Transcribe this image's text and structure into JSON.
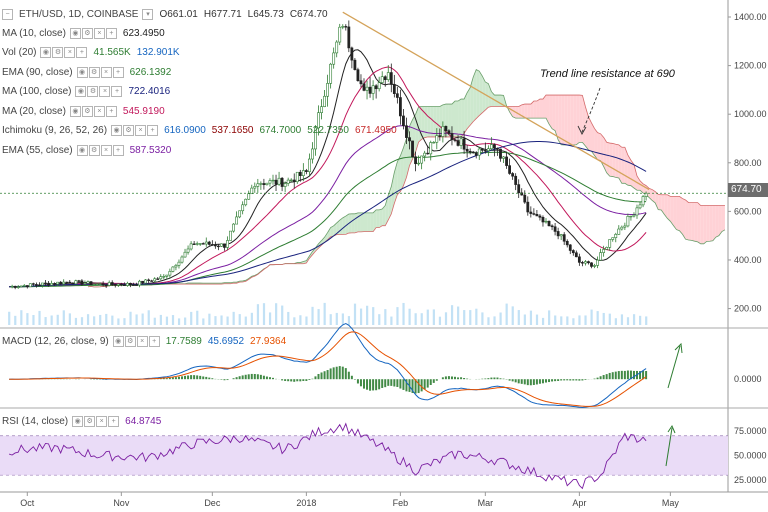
{
  "chart_header": {
    "symbol": "ETH/USD, 1D, COINBASE",
    "ohlc": [
      "O661.01",
      "H677.71",
      "L645.73",
      "C674.70"
    ]
  },
  "indicators": [
    {
      "name": "MA (10, close)",
      "values": [
        "623.4950"
      ],
      "colors": [
        "#222222"
      ]
    },
    {
      "name": "Vol (20)",
      "values": [
        "41.565K",
        "132.901K"
      ],
      "colors": [
        "#2e7d32",
        "#1565c0"
      ]
    },
    {
      "name": "EMA (90, close)",
      "values": [
        "626.1392"
      ],
      "colors": [
        "#2e7d32"
      ]
    },
    {
      "name": "MA (100, close)",
      "values": [
        "722.4016"
      ],
      "colors": [
        "#1a237e"
      ]
    },
    {
      "name": "MA (20, close)",
      "values": [
        "545.9190"
      ],
      "colors": [
        "#c2185b"
      ]
    },
    {
      "name": "Ichimoku (9, 26, 52, 26)",
      "values": [
        "616.0900",
        "537.1650",
        "674.7000",
        "522.7350",
        "671.4950"
      ],
      "colors": [
        "#1565c0",
        "#8b0000",
        "#2e7d32",
        "#2e7d32",
        "#c62828"
      ]
    },
    {
      "name": "EMA (55, close)",
      "values": [
        "587.5320"
      ],
      "colors": [
        "#7b1fa2"
      ]
    }
  ],
  "annotation": "Trend line resistance at 690",
  "last_price": "674.70",
  "macd_header": {
    "name": "MACD (12, 26, close, 9)",
    "values": [
      "17.7589",
      "45.6952",
      "27.9364"
    ],
    "colors": [
      "#2e7d32",
      "#1565c0",
      "#e65100"
    ]
  },
  "rsi_header": {
    "name": "RSI (14, close)",
    "values": [
      "64.8745"
    ],
    "colors": [
      "#7b1fa2"
    ]
  },
  "colors": {
    "up": "#2e7d32",
    "down": "#222222",
    "trendline": "#d4a35a",
    "cloud_bull": "#c8e6c9",
    "cloud_bear": "#ffcdd2",
    "rsi_band": "#eadcf7",
    "volume": "#b3d9f2"
  },
  "chart_data": [
    {
      "type": "line",
      "name": "ETH/USD price (approx.)",
      "x": [
        "2017-09-25",
        "2017-10-05",
        "2017-10-15",
        "2017-10-25",
        "2017-11-05",
        "2017-11-15",
        "2017-11-25",
        "2017-12-05",
        "2017-12-15",
        "2017-12-25",
        "2018-01-01",
        "2018-01-07",
        "2018-01-13",
        "2018-01-20",
        "2018-01-28",
        "2018-02-06",
        "2018-02-15",
        "2018-02-25",
        "2018-03-05",
        "2018-03-15",
        "2018-03-25",
        "2018-04-01",
        "2018-04-06",
        "2018-04-12",
        "2018-04-18",
        "2018-04-23"
      ],
      "series": [
        {
          "values": [
            290,
            300,
            310,
            300,
            300,
            330,
            470,
            460,
            720,
            720,
            760,
            1100,
            1380,
            1080,
            1180,
            800,
            930,
            850,
            860,
            600,
            510,
            390,
            380,
            500,
            580,
            674.7
          ]
        }
      ],
      "y_ticks": [
        200,
        400,
        600,
        800,
        1000,
        1200,
        1400
      ],
      "x_ticks": [
        "Oct",
        "Nov",
        "Dec",
        "2018",
        "Feb",
        "Mar",
        "Apr",
        "May"
      ],
      "ylim": [
        120,
        1470
      ]
    },
    {
      "type": "line",
      "name": "MACD (12, 26, close, 9)",
      "y_ticks": [
        0
      ],
      "ylim": [
        -80,
        120
      ]
    },
    {
      "type": "line",
      "name": "RSI (14, close)",
      "x": [
        "2017-09-25",
        "2017-10-10",
        "2017-10-25",
        "2017-11-10",
        "2017-11-25",
        "2017-12-10",
        "2017-12-25",
        "2018-01-05",
        "2018-01-13",
        "2018-01-25",
        "2018-02-06",
        "2018-02-20",
        "2018-03-05",
        "2018-03-20",
        "2018-04-01",
        "2018-04-08",
        "2018-04-16",
        "2018-04-23"
      ],
      "series": [
        {
          "values": [
            55,
            58,
            50,
            48,
            62,
            68,
            56,
            74,
            80,
            60,
            35,
            52,
            45,
            30,
            20,
            30,
            70,
            64.87
          ]
        }
      ],
      "y_ticks": [
        25,
        50,
        75
      ],
      "ylim": [
        15,
        90
      ]
    }
  ]
}
